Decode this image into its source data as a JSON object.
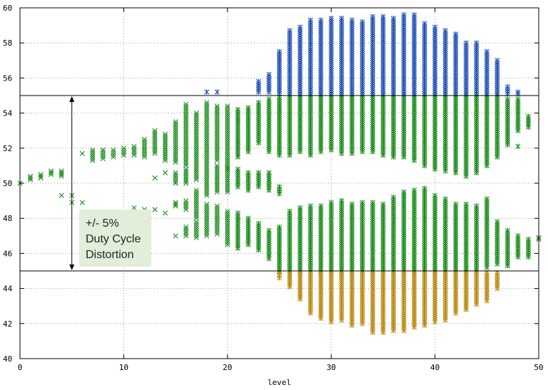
{
  "chart_data": {
    "type": "scatter",
    "xlabel": "level",
    "ylabel": "",
    "xlim": [
      0,
      50
    ],
    "ylim": [
      40,
      60
    ],
    "xticks": [
      0,
      10,
      20,
      30,
      40,
      50
    ],
    "yticks": [
      40,
      42,
      44,
      46,
      48,
      50,
      52,
      54,
      56,
      58,
      60
    ],
    "grid": true,
    "reference_lines": [
      45,
      55
    ],
    "annotation": {
      "lines": [
        "+/- 5%",
        "Duty Cycle",
        "Distortion"
      ],
      "arrow_x": 5,
      "arrow_range": [
        45,
        55
      ]
    },
    "colors": {
      "within": "#1a8a1a",
      "above": "#1f4fb5",
      "below": "#b8860b",
      "box": "#e2eed9"
    },
    "series": [
      {
        "marker": "x",
        "columns": [
          {
            "x": 0,
            "ranges": [
              [
                50,
                50
              ]
            ]
          },
          {
            "x": 1,
            "ranges": [
              [
                50.2,
                50.4
              ]
            ]
          },
          {
            "x": 2,
            "ranges": [
              [
                50.3,
                50.5
              ]
            ]
          },
          {
            "x": 3,
            "ranges": [
              [
                50.5,
                50.7
              ]
            ]
          },
          {
            "x": 4,
            "ranges": [
              [
                50.4,
                50.7
              ],
              [
                49.3,
                49.3
              ]
            ]
          },
          {
            "x": 5,
            "ranges": [
              [
                49.3,
                49.3
              ],
              [
                48.9,
                48.9
              ]
            ]
          },
          {
            "x": 6,
            "ranges": [
              [
                51.7,
                51.7
              ],
              [
                48.9,
                48.9
              ]
            ]
          },
          {
            "x": 7,
            "ranges": [
              [
                51.3,
                51.9
              ]
            ]
          },
          {
            "x": 8,
            "ranges": [
              [
                51.4,
                51.9
              ]
            ]
          },
          {
            "x": 9,
            "ranges": [
              [
                51.5,
                51.9
              ]
            ]
          },
          {
            "x": 10,
            "ranges": [
              [
                51.6,
                52.0
              ]
            ]
          },
          {
            "x": 11,
            "ranges": [
              [
                51.6,
                52.1
              ],
              [
                48.6,
                48.6
              ]
            ]
          },
          {
            "x": 12,
            "ranges": [
              [
                51.5,
                52.5
              ],
              [
                48.5,
                48.5
              ]
            ]
          },
          {
            "x": 13,
            "ranges": [
              [
                51.7,
                53.0
              ],
              [
                50.3,
                50.3
              ],
              [
                48.5,
                48.5
              ]
            ]
          },
          {
            "x": 14,
            "ranges": [
              [
                51.3,
                52.8
              ],
              [
                50.6,
                50.6
              ],
              [
                48.3,
                48.3
              ]
            ]
          },
          {
            "x": 15,
            "ranges": [
              [
                51.2,
                53.5
              ],
              [
                50.0,
                50.6
              ],
              [
                48.7,
                48.9
              ],
              [
                47.0,
                47.0
              ]
            ]
          },
          {
            "x": 16,
            "ranges": [
              [
                51.0,
                54.5
              ],
              [
                50.0,
                50.8
              ],
              [
                48.5,
                49.0
              ],
              [
                47.0,
                47.5
              ]
            ]
          },
          {
            "x": 17,
            "ranges": [
              [
                50.2,
                54.0
              ],
              [
                48.0,
                49.6
              ],
              [
                46.9,
                47.8
              ]
            ]
          },
          {
            "x": 18,
            "ranges": [
              [
                49.3,
                54.6
              ],
              [
                47.0,
                48.8
              ]
            ]
          },
          {
            "x": 19,
            "ranges": [
              [
                51.3,
                54.4
              ],
              [
                49.5,
                51.0
              ],
              [
                47.1,
                48.7
              ]
            ]
          },
          {
            "x": 20,
            "ranges": [
              [
                50.8,
                54.4
              ],
              [
                49.5,
                50.9
              ],
              [
                46.5,
                48.4
              ]
            ]
          }
        ]
      },
      {
        "marker": "*",
        "columns": [
          {
            "x": 18,
            "ranges": [
              [
                55.2,
                55.2
              ]
            ]
          },
          {
            "x": 19,
            "ranges": [
              [
                55.2,
                55.2
              ]
            ]
          },
          {
            "x": 21,
            "ranges": [
              [
                51.5,
                54.2
              ],
              [
                49.8,
                50.8
              ],
              [
                46.3,
                48.3
              ]
            ]
          },
          {
            "x": 22,
            "ranges": [
              [
                51.8,
                54.3
              ],
              [
                49.6,
                50.6
              ],
              [
                46.5,
                48.0
              ]
            ]
          },
          {
            "x": 23,
            "ranges": [
              [
                52.3,
                54.6
              ],
              [
                49.8,
                50.6
              ],
              [
                46.2,
                47.7
              ],
              [
                55.2,
                55.8
              ]
            ]
          },
          {
            "x": 24,
            "ranges": [
              [
                51.8,
                54.8
              ],
              [
                49.6,
                50.6
              ],
              [
                45.7,
                47.3
              ],
              [
                55.2,
                56.2
              ]
            ]
          },
          {
            "x": 25,
            "ranges": [
              [
                51.6,
                54.9
              ],
              [
                49.4,
                49.8
              ],
              [
                45.0,
                47.5
              ],
              [
                55.1,
                57.5
              ],
              [
                44.6,
                44.9
              ]
            ]
          },
          {
            "x": 26,
            "ranges": [
              [
                51.6,
                55.0
              ],
              [
                45.0,
                48.4
              ],
              [
                55.1,
                58.7
              ],
              [
                44.1,
                44.9
              ]
            ]
          },
          {
            "x": 27,
            "ranges": [
              [
                51.8,
                55.0
              ],
              [
                45.0,
                48.6
              ],
              [
                55.1,
                58.9
              ],
              [
                43.4,
                44.9
              ]
            ]
          },
          {
            "x": 28,
            "ranges": [
              [
                51.6,
                55.0
              ],
              [
                45.0,
                48.7
              ],
              [
                55.1,
                59.3
              ],
              [
                42.6,
                44.9
              ]
            ]
          },
          {
            "x": 29,
            "ranges": [
              [
                51.8,
                55.0
              ],
              [
                45.0,
                48.7
              ],
              [
                55.1,
                59.3
              ],
              [
                42.3,
                44.9
              ]
            ]
          },
          {
            "x": 30,
            "ranges": [
              [
                51.9,
                55.0
              ],
              [
                45.0,
                48.9
              ],
              [
                55.1,
                59.4
              ],
              [
                42.1,
                44.9
              ]
            ]
          },
          {
            "x": 31,
            "ranges": [
              [
                51.7,
                55.0
              ],
              [
                45.0,
                49.0
              ],
              [
                55.1,
                59.4
              ],
              [
                42.2,
                44.9
              ]
            ]
          },
          {
            "x": 32,
            "ranges": [
              [
                51.7,
                55.0
              ],
              [
                45.0,
                48.8
              ],
              [
                55.1,
                59.3
              ],
              [
                41.9,
                44.9
              ]
            ]
          },
          {
            "x": 33,
            "ranges": [
              [
                51.8,
                55.0
              ],
              [
                45.0,
                48.9
              ],
              [
                55.1,
                59.2
              ],
              [
                42.0,
                44.9
              ]
            ]
          },
          {
            "x": 34,
            "ranges": [
              [
                51.8,
                55.0
              ],
              [
                45.0,
                48.9
              ],
              [
                55.1,
                59.5
              ],
              [
                41.5,
                44.9
              ]
            ]
          },
          {
            "x": 35,
            "ranges": [
              [
                51.6,
                55.0
              ],
              [
                45.0,
                48.8
              ],
              [
                55.1,
                59.5
              ],
              [
                41.5,
                44.9
              ]
            ]
          },
          {
            "x": 36,
            "ranges": [
              [
                51.5,
                55.0
              ],
              [
                45.0,
                49.2
              ],
              [
                55.1,
                59.4
              ],
              [
                41.6,
                44.9
              ]
            ]
          },
          {
            "x": 37,
            "ranges": [
              [
                51.5,
                55.0
              ],
              [
                45.0,
                49.5
              ],
              [
                55.1,
                59.6
              ],
              [
                41.6,
                44.9
              ]
            ]
          },
          {
            "x": 38,
            "ranges": [
              [
                51.3,
                55.0
              ],
              [
                45.0,
                49.6
              ],
              [
                55.1,
                59.6
              ],
              [
                41.8,
                44.9
              ]
            ]
          },
          {
            "x": 39,
            "ranges": [
              [
                51.0,
                55.0
              ],
              [
                45.0,
                49.7
              ],
              [
                55.1,
                59.1
              ],
              [
                41.9,
                44.9
              ]
            ]
          },
          {
            "x": 40,
            "ranges": [
              [
                50.8,
                55.0
              ],
              [
                45.0,
                49.3
              ],
              [
                55.1,
                58.9
              ],
              [
                42.1,
                44.9
              ]
            ]
          },
          {
            "x": 41,
            "ranges": [
              [
                50.7,
                55.0
              ],
              [
                45.0,
                49.1
              ],
              [
                55.1,
                58.7
              ],
              [
                42.2,
                44.9
              ]
            ]
          },
          {
            "x": 42,
            "ranges": [
              [
                50.6,
                55.0
              ],
              [
                45.0,
                48.8
              ],
              [
                55.1,
                58.5
              ],
              [
                42.6,
                44.9
              ]
            ]
          },
          {
            "x": 43,
            "ranges": [
              [
                50.4,
                55.0
              ],
              [
                45.0,
                48.8
              ],
              [
                55.1,
                58.0
              ],
              [
                42.8,
                44.9
              ]
            ]
          },
          {
            "x": 44,
            "ranges": [
              [
                50.6,
                55.0
              ],
              [
                45.0,
                48.7
              ],
              [
                55.1,
                58.0
              ],
              [
                43.1,
                44.9
              ]
            ]
          },
          {
            "x": 45,
            "ranges": [
              [
                51.0,
                55.0
              ],
              [
                45.2,
                49.1
              ],
              [
                55.1,
                57.5
              ],
              [
                43.3,
                44.9
              ]
            ]
          },
          {
            "x": 46,
            "ranges": [
              [
                51.5,
                55.0
              ],
              [
                45.4,
                47.8
              ],
              [
                55.1,
                57.0
              ],
              [
                44.0,
                44.9
              ]
            ]
          },
          {
            "x": 47,
            "ranges": [
              [
                52.2,
                54.8
              ],
              [
                45.3,
                47.3
              ],
              [
                55.1,
                55.5
              ]
            ]
          },
          {
            "x": 48,
            "ranges": [
              [
                53.0,
                54.8
              ],
              [
                45.8,
                47.0
              ],
              [
                55.1,
                55.2
              ],
              [
                52.1,
                52.1
              ]
            ]
          },
          {
            "x": 49,
            "ranges": [
              [
                53.2,
                53.8
              ],
              [
                45.8,
                46.8
              ]
            ]
          },
          {
            "x": 50,
            "ranges": [
              [
                46.8,
                46.9
              ]
            ]
          }
        ]
      }
    ]
  }
}
